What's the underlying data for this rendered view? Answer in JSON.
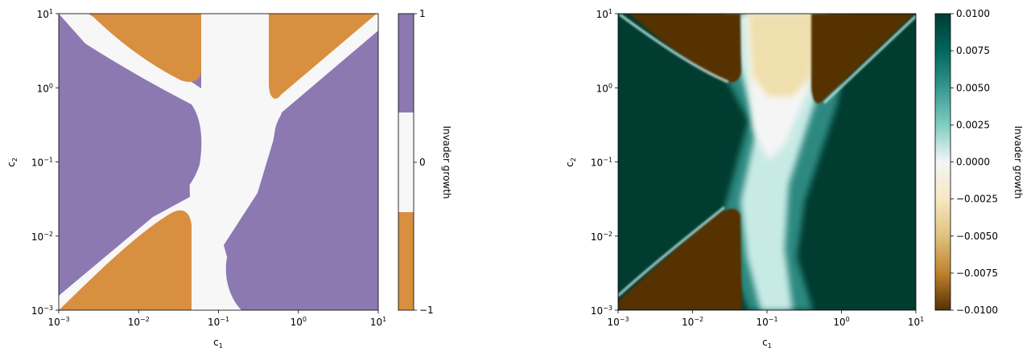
{
  "chart_data": [
    {
      "type": "heatmap",
      "title": "",
      "xlabel_base": "c",
      "xlabel_sub": "1",
      "ylabel_base": "c",
      "ylabel_sub": "2",
      "x_scale": "log",
      "y_scale": "log",
      "xlim": [
        0.001,
        10
      ],
      "ylim": [
        0.001,
        10
      ],
      "x_ticks": [
        {
          "base": "10",
          "exp": "−3"
        },
        {
          "base": "10",
          "exp": "−2"
        },
        {
          "base": "10",
          "exp": "−1"
        },
        {
          "base": "10",
          "exp": "0"
        },
        {
          "base": "10",
          "exp": "1"
        }
      ],
      "y_ticks": [
        {
          "base": "10",
          "exp": "−3"
        },
        {
          "base": "10",
          "exp": "−2"
        },
        {
          "base": "10",
          "exp": "−1"
        },
        {
          "base": "10",
          "exp": "0"
        },
        {
          "base": "10",
          "exp": "1"
        }
      ],
      "colormap": "discrete",
      "colors": {
        "negative": "#d98f40",
        "neutral": "#f7f7f7",
        "positive": "#8c79b2"
      },
      "colorbar": {
        "label": "Invader growth",
        "ticks": [
          "1",
          "0",
          "−1"
        ],
        "range": [
          -1,
          1
        ]
      },
      "grid": false
    },
    {
      "type": "heatmap",
      "title": "",
      "xlabel_base": "c",
      "xlabel_sub": "1",
      "ylabel_base": "c",
      "ylabel_sub": "2",
      "x_scale": "log",
      "y_scale": "log",
      "xlim": [
        0.001,
        10
      ],
      "ylim": [
        0.001,
        10
      ],
      "x_ticks": [
        {
          "base": "10",
          "exp": "−3"
        },
        {
          "base": "10",
          "exp": "−2"
        },
        {
          "base": "10",
          "exp": "−1"
        },
        {
          "base": "10",
          "exp": "0"
        },
        {
          "base": "10",
          "exp": "1"
        }
      ],
      "y_ticks": [
        {
          "base": "10",
          "exp": "−3"
        },
        {
          "base": "10",
          "exp": "−2"
        },
        {
          "base": "10",
          "exp": "−1"
        },
        {
          "base": "10",
          "exp": "0"
        },
        {
          "base": "10",
          "exp": "1"
        }
      ],
      "colormap": "BrBG",
      "colors": {
        "darkest_negative": "#543005",
        "neutral": "#f5f5f5",
        "darkest_positive": "#003c30"
      },
      "colorbar": {
        "label": "Invader growth",
        "ticks": [
          "0.0100",
          "0.0075",
          "0.0050",
          "0.0025",
          "0.0000",
          "−0.0025",
          "−0.0050",
          "−0.0075",
          "−0.0100"
        ],
        "range": [
          -0.01,
          0.01
        ]
      },
      "grid": false
    }
  ]
}
